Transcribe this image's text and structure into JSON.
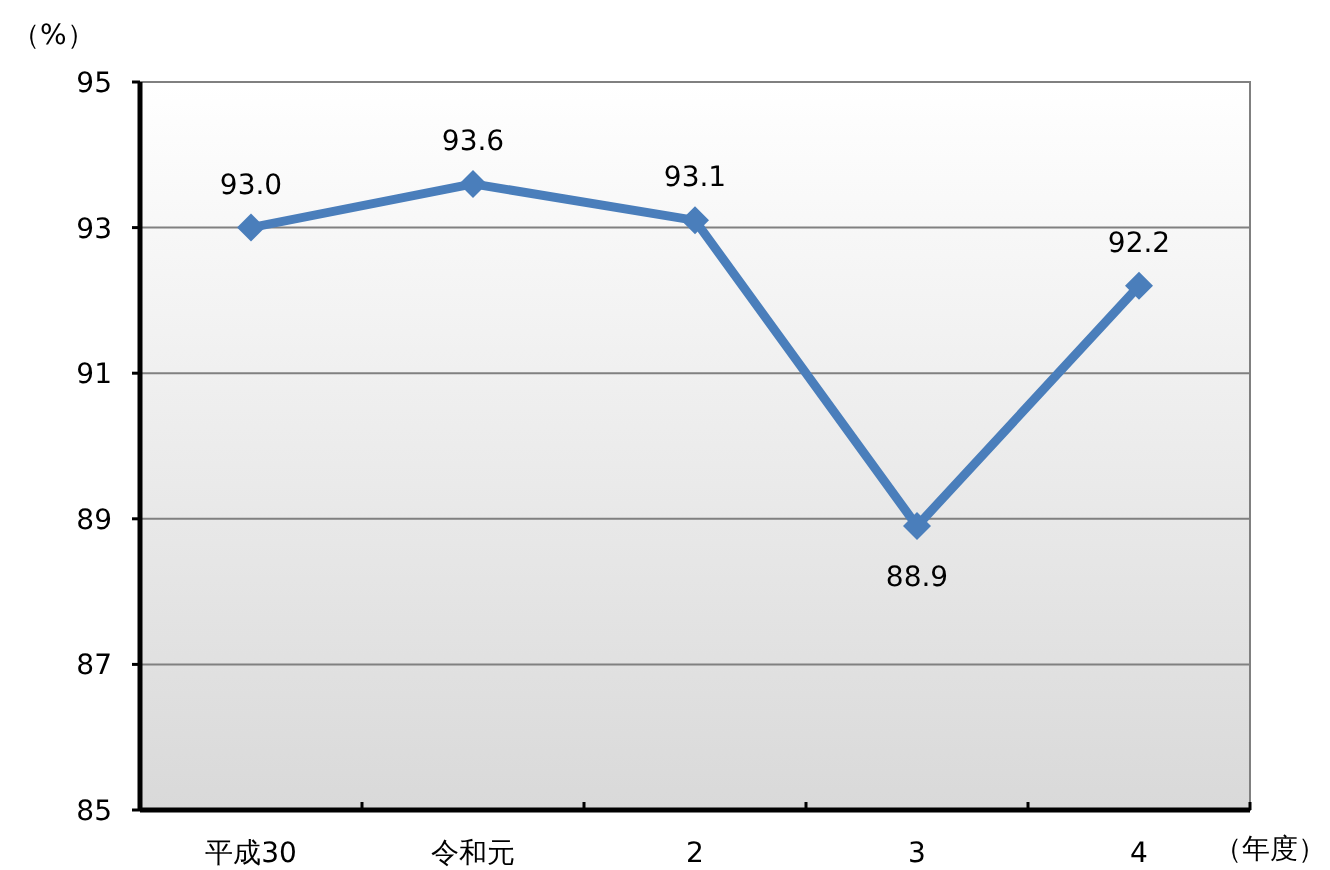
{
  "chart_data": {
    "type": "line",
    "ylabel": "（%）",
    "xlabel": "（年度）",
    "categories": [
      "平成30",
      "令和元",
      "2",
      "3",
      "4"
    ],
    "series": [
      {
        "color": "#4a7ebb",
        "values": [
          93.0,
          93.6,
          93.1,
          88.9,
          92.2
        ],
        "value_labels": [
          "93.0",
          "93.6",
          "93.1",
          "88.9",
          "92.2"
        ]
      }
    ],
    "ylim": [
      85,
      95
    ],
    "yticks": [
      85,
      87,
      89,
      91,
      93,
      95
    ],
    "grid": "y",
    "marker": "diamond"
  }
}
